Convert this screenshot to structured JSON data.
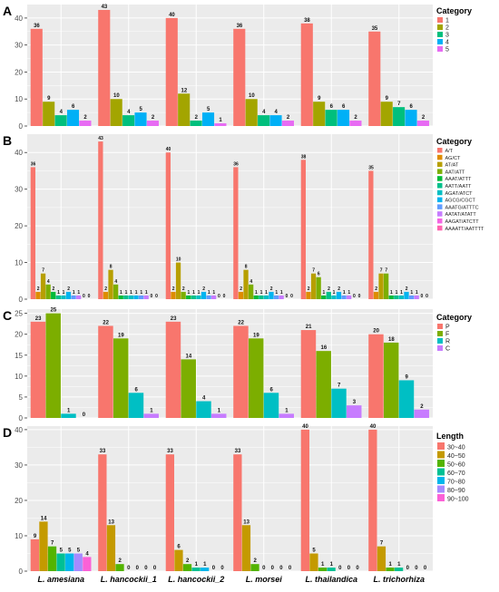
{
  "x_categories": [
    "L. amesiana",
    "L. hancockii_1",
    "L. hancockii_2",
    "L. morsei",
    "L. thailandica",
    "L. trichorhiza"
  ],
  "chart_data": [
    {
      "panel_label": "A",
      "type": "bar",
      "legend_title": "Category",
      "legend_placement": "right",
      "ylim": [
        0,
        45
      ],
      "yticks": [
        0,
        10,
        20,
        30,
        40
      ],
      "grid": true,
      "series": [
        {
          "name": "1",
          "color": "#F8766D",
          "values": [
            36,
            43,
            40,
            36,
            38,
            35
          ]
        },
        {
          "name": "2",
          "color": "#A3A500",
          "values": [
            9,
            10,
            12,
            10,
            9,
            9
          ]
        },
        {
          "name": "3",
          "color": "#00BF7D",
          "values": [
            4,
            4,
            2,
            4,
            6,
            7
          ]
        },
        {
          "name": "4",
          "color": "#00B0F6",
          "values": [
            6,
            5,
            5,
            4,
            6,
            6
          ]
        },
        {
          "name": "5",
          "color": "#E76BF3",
          "values": [
            2,
            2,
            1,
            2,
            2,
            2
          ]
        }
      ]
    },
    {
      "panel_label": "B",
      "type": "bar",
      "legend_title": "Category",
      "legend_placement": "right",
      "ylim": [
        0,
        45
      ],
      "yticks": [
        0,
        10,
        20,
        30,
        40
      ],
      "grid": true,
      "series": [
        {
          "name": "A/T",
          "color": "#F8766D",
          "values": [
            36,
            43,
            40,
            36,
            38,
            35
          ]
        },
        {
          "name": "AG/CT",
          "color": "#DE8C00",
          "values": [
            2,
            2,
            2,
            2,
            2,
            2
          ]
        },
        {
          "name": "AT/AT",
          "color": "#B79F00",
          "values": [
            7,
            8,
            10,
            8,
            7,
            7
          ]
        },
        {
          "name": "AAT/ATT",
          "color": "#7CAE00",
          "values": [
            4,
            4,
            2,
            4,
            6,
            7
          ]
        },
        {
          "name": "AAAT/ATTT",
          "color": "#00BA38",
          "values": [
            2,
            1,
            1,
            1,
            1,
            1
          ]
        },
        {
          "name": "AATT/AATT",
          "color": "#00C08B",
          "values": [
            1,
            1,
            1,
            1,
            2,
            1
          ]
        },
        {
          "name": "AGAT/ATCT",
          "color": "#00BFC4",
          "values": [
            1,
            1,
            1,
            1,
            1,
            1
          ]
        },
        {
          "name": "AGCG/CGCT",
          "color": "#00B4F0",
          "values": [
            2,
            1,
            2,
            2,
            2,
            2
          ]
        },
        {
          "name": "AAATG/ATTTC",
          "color": "#619CFF",
          "values": [
            1,
            1,
            1,
            1,
            1,
            1
          ]
        },
        {
          "name": "AATAT/ATATT",
          "color": "#C77CFF",
          "values": [
            1,
            1,
            1,
            1,
            1,
            1
          ]
        },
        {
          "name": "AAGAT/ATCTT",
          "color": "#F564E3",
          "values": [
            0,
            0,
            0,
            0,
            0,
            0
          ]
        },
        {
          "name": "AAAATT/AATTTT",
          "color": "#FF64B0",
          "values": [
            0,
            0,
            0,
            0,
            0,
            0
          ]
        }
      ]
    },
    {
      "panel_label": "C",
      "type": "bar",
      "legend_title": "Category",
      "legend_placement": "right",
      "ylim": [
        0,
        26
      ],
      "yticks": [
        0,
        5,
        10,
        15,
        20,
        25
      ],
      "grid": true,
      "series": [
        {
          "name": "P",
          "color": "#F8766D",
          "values": [
            23,
            22,
            23,
            22,
            21,
            20
          ]
        },
        {
          "name": "F",
          "color": "#7CAE00",
          "values": [
            25,
            19,
            14,
            19,
            16,
            18
          ]
        },
        {
          "name": "R",
          "color": "#00BFC4",
          "values": [
            1,
            6,
            4,
            6,
            7,
            9
          ]
        },
        {
          "name": "C",
          "color": "#C77CFF",
          "values": [
            0,
            1,
            1,
            1,
            3,
            2
          ]
        }
      ]
    },
    {
      "panel_label": "D",
      "type": "bar",
      "legend_title": "Length",
      "legend_placement": "right",
      "ylim": [
        0,
        41
      ],
      "yticks": [
        0,
        10,
        20,
        30,
        40
      ],
      "grid": true,
      "series": [
        {
          "name": "30~40",
          "color": "#F8766D",
          "values": [
            9,
            33,
            33,
            33,
            40,
            40
          ]
        },
        {
          "name": "40~50",
          "color": "#C49A00",
          "values": [
            14,
            13,
            6,
            13,
            5,
            7
          ]
        },
        {
          "name": "50~60",
          "color": "#53B400",
          "values": [
            7,
            2,
            2,
            2,
            1,
            1
          ]
        },
        {
          "name": "60~70",
          "color": "#00C094",
          "values": [
            5,
            0,
            1,
            0,
            1,
            1
          ]
        },
        {
          "name": "70~80",
          "color": "#00B6EB",
          "values": [
            5,
            0,
            1,
            0,
            0,
            0
          ]
        },
        {
          "name": "80~90",
          "color": "#A58AFF",
          "values": [
            5,
            0,
            0,
            0,
            0,
            0
          ]
        },
        {
          "name": "90~100",
          "color": "#FB61D7",
          "values": [
            4,
            0,
            0,
            0,
            0,
            0
          ]
        }
      ]
    }
  ]
}
